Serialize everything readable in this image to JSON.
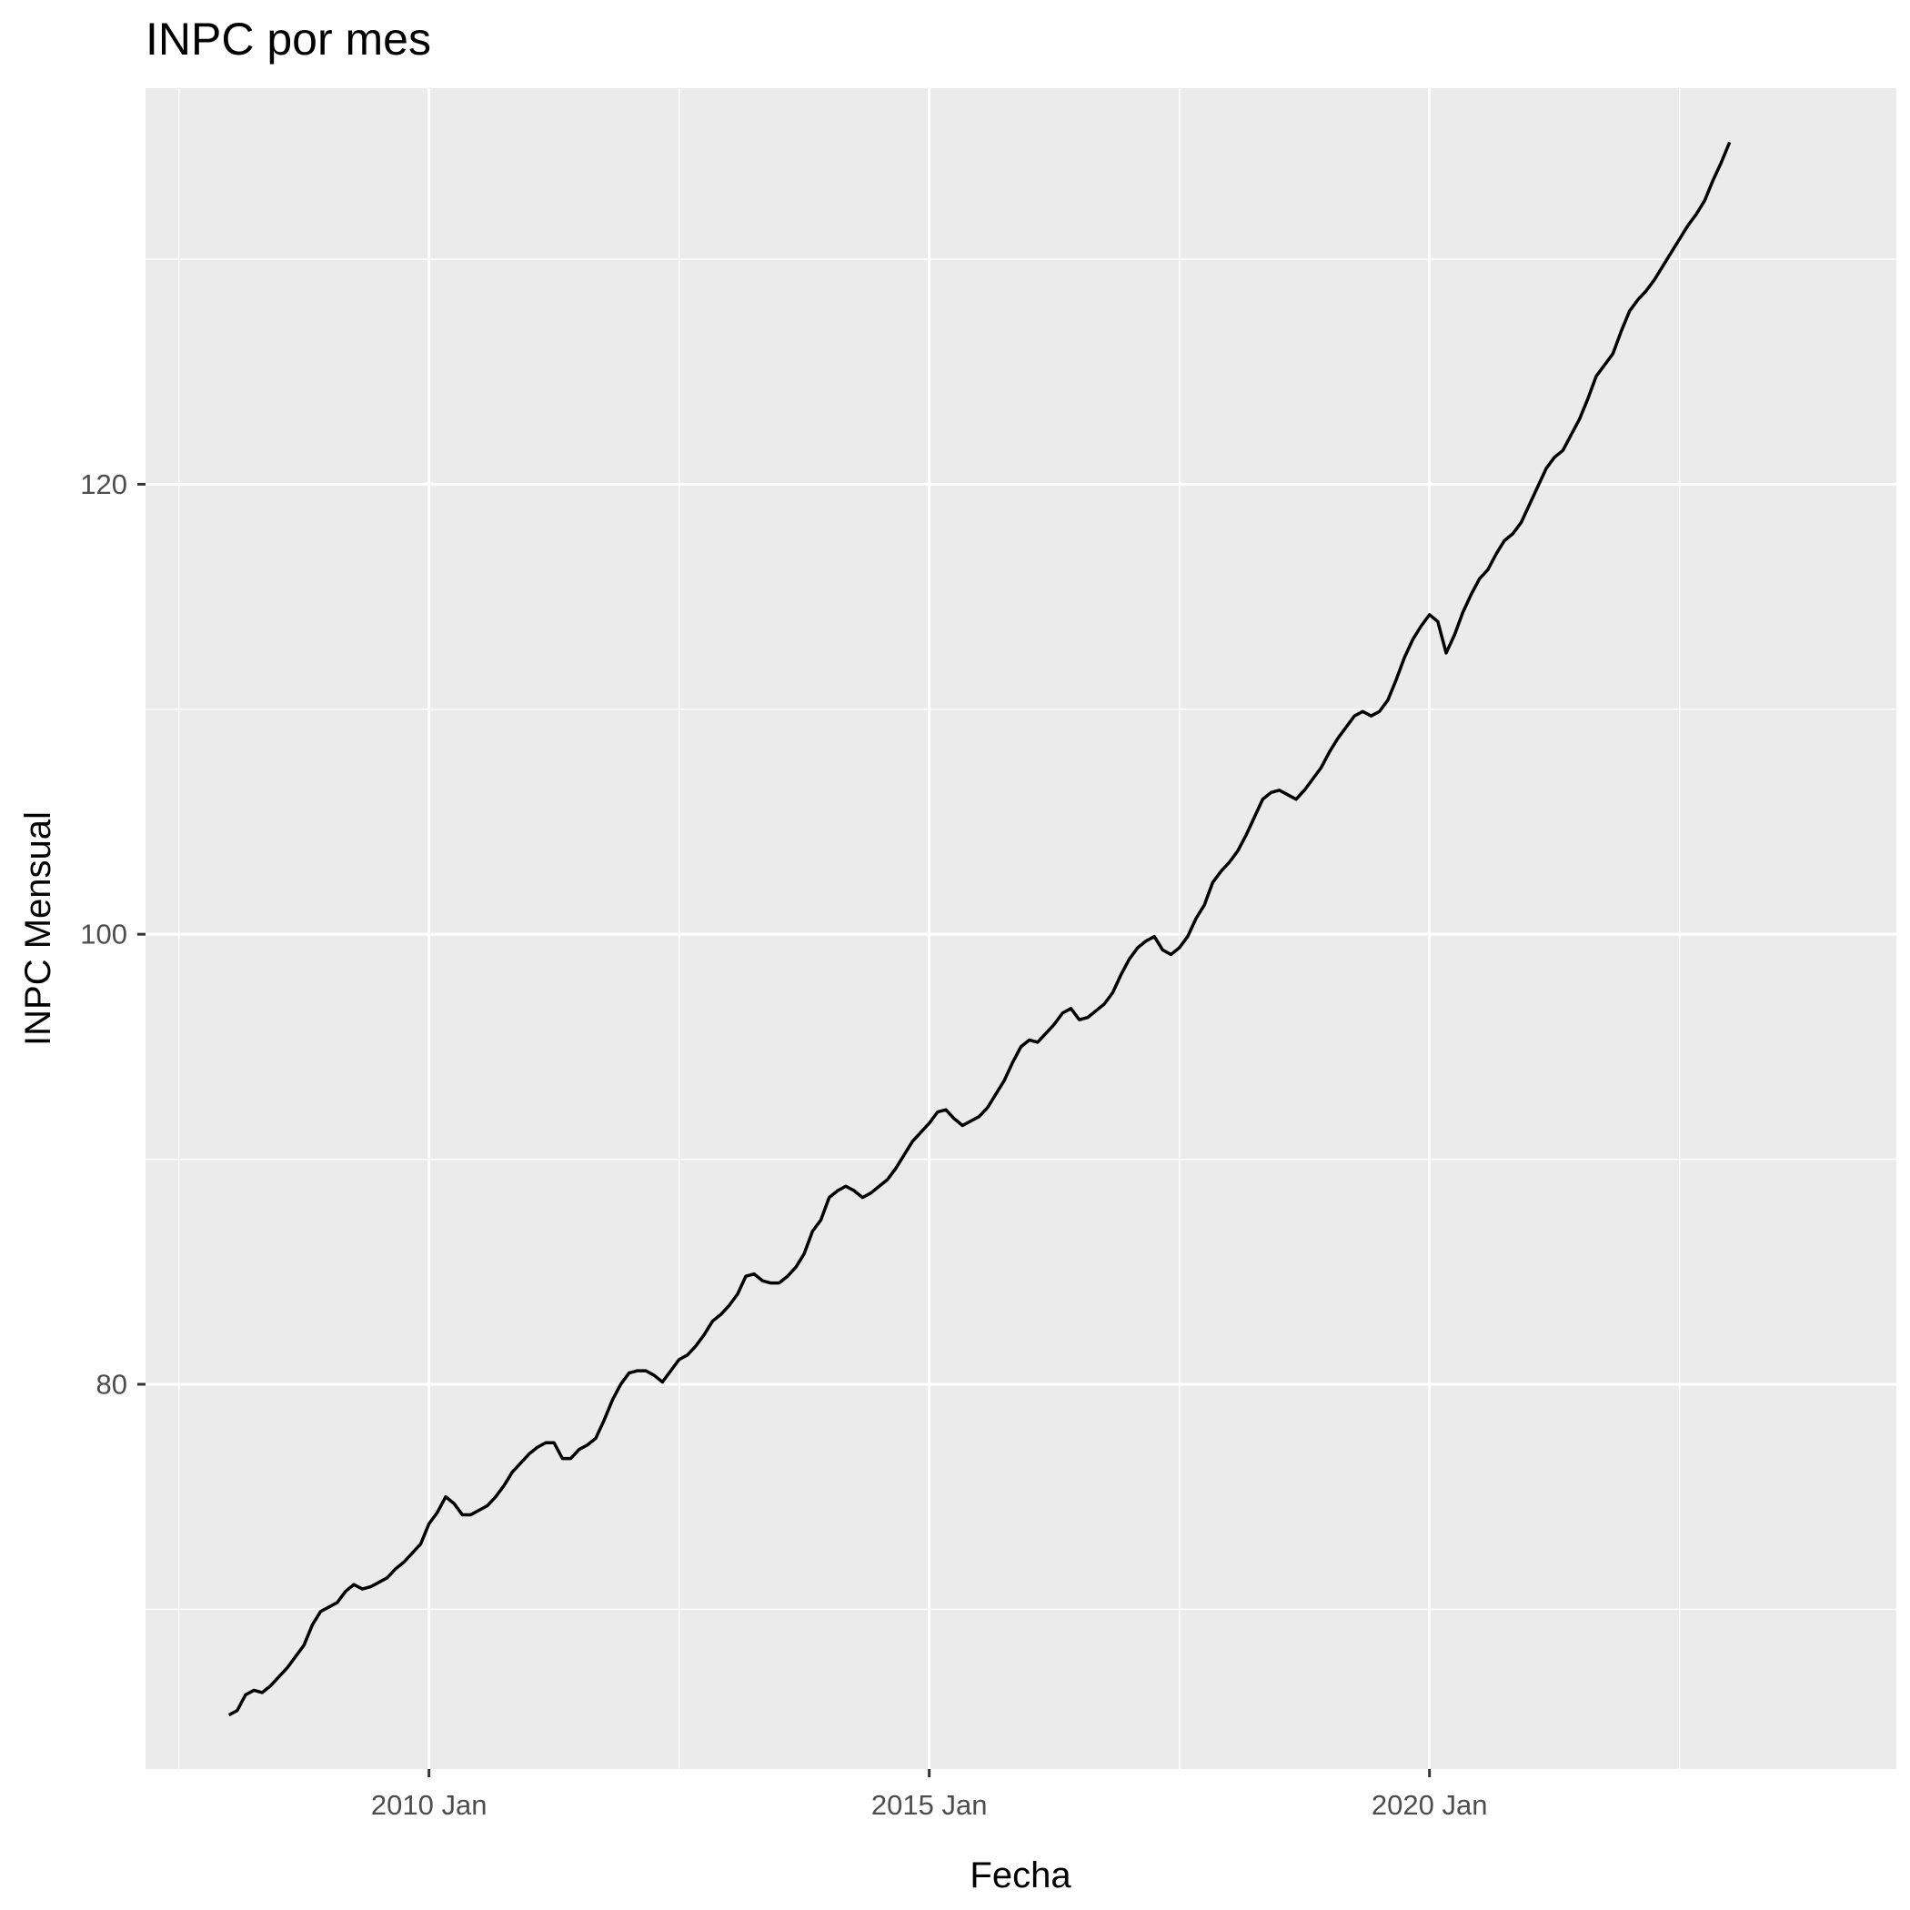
{
  "chart_data": {
    "type": "line",
    "title": "INPC por mes",
    "xlabel": "Fecha",
    "ylabel": "INPC Mensual",
    "x_tick_labels": [
      "2010 Jan",
      "2015 Jan",
      "2020 Jan"
    ],
    "y_tick_labels": [
      "80",
      "100",
      "120"
    ],
    "xlim": [
      "2007-03",
      "2024-09"
    ],
    "ylim": [
      62.9,
      137.6
    ],
    "x_major_ticks": [
      "2010-01",
      "2015-01",
      "2020-01"
    ],
    "x_minor_ticks": [
      "2007-07",
      "2012-07",
      "2017-07",
      "2022-07"
    ],
    "y_major_ticks": [
      80,
      100,
      120
    ],
    "y_minor_ticks": [
      70,
      90,
      110,
      130
    ],
    "grid": true,
    "legend": "none",
    "colors": {
      "panel": "#ebebeb",
      "grid": "#ffffff",
      "line": "#000000"
    },
    "series": [
      {
        "start": "2008-01",
        "frequency": "monthly",
        "values": [
          65.3,
          65.5,
          66.2,
          66.4,
          66.3,
          66.6,
          67.0,
          67.4,
          67.9,
          68.4,
          69.3,
          69.9,
          70.1,
          70.3,
          70.8,
          71.1,
          70.9,
          71.0,
          71.2,
          71.4,
          71.8,
          72.1,
          72.5,
          72.9,
          73.8,
          74.3,
          75.0,
          74.7,
          74.2,
          74.2,
          74.4,
          74.6,
          75.0,
          75.5,
          76.1,
          76.5,
          76.9,
          77.2,
          77.4,
          77.4,
          76.7,
          76.7,
          77.1,
          77.3,
          77.6,
          78.4,
          79.3,
          80.0,
          80.5,
          80.6,
          80.6,
          80.4,
          80.1,
          80.6,
          81.1,
          81.3,
          81.7,
          82.2,
          82.8,
          83.1,
          83.5,
          84.0,
          84.8,
          84.9,
          84.6,
          84.5,
          84.5,
          84.8,
          85.2,
          85.8,
          86.8,
          87.3,
          88.3,
          88.6,
          88.8,
          88.6,
          88.3,
          88.5,
          88.8,
          89.1,
          89.6,
          90.2,
          90.8,
          91.2,
          91.6,
          92.1,
          92.2,
          91.8,
          91.5,
          91.7,
          91.9,
          92.3,
          92.9,
          93.5,
          94.3,
          95.0,
          95.3,
          95.2,
          95.6,
          96.0,
          96.5,
          96.7,
          96.2,
          96.3,
          96.6,
          96.9,
          97.4,
          98.2,
          98.9,
          99.4,
          99.7,
          99.9,
          99.3,
          99.1,
          99.4,
          99.9,
          100.7,
          101.3,
          102.3,
          102.8,
          103.2,
          103.7,
          104.4,
          105.2,
          106.0,
          106.3,
          106.4,
          106.2,
          106.0,
          106.4,
          106.9,
          107.4,
          108.1,
          108.7,
          109.2,
          109.7,
          109.9,
          109.7,
          109.9,
          110.4,
          111.3,
          112.3,
          113.1,
          113.7,
          114.2,
          113.9,
          112.5,
          113.3,
          114.3,
          115.1,
          115.8,
          116.2,
          116.9,
          117.5,
          117.8,
          118.3,
          119.1,
          119.9,
          120.7,
          121.2,
          121.5,
          122.2,
          122.9,
          123.8,
          124.8,
          125.3,
          125.8,
          126.8,
          127.7,
          128.2,
          128.6,
          129.1,
          129.7,
          130.3,
          130.9,
          131.5,
          132.0,
          132.6,
          133.5,
          134.3,
          135.2
        ]
      }
    ]
  }
}
